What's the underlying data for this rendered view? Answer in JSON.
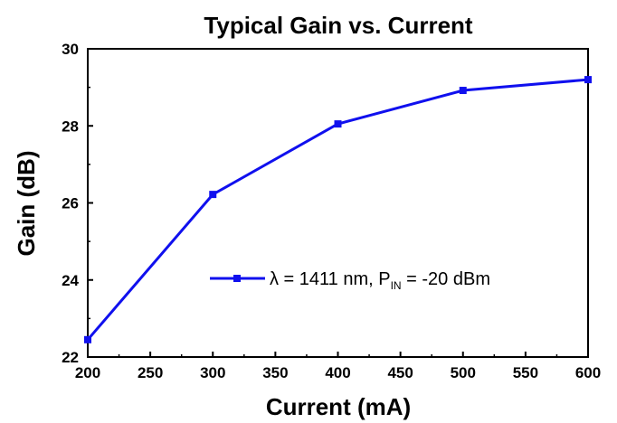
{
  "chart_data": {
    "type": "line",
    "title": "Typical Gain vs. Current",
    "xlabel": "Current (mA)",
    "ylabel": "Gain (dB)",
    "xlim": [
      200,
      600
    ],
    "ylim": [
      22,
      30
    ],
    "x_ticks": [
      200,
      250,
      300,
      350,
      400,
      450,
      500,
      550,
      600
    ],
    "y_ticks": [
      22,
      24,
      26,
      28,
      30
    ],
    "grid": false,
    "legend_position": "lower-right",
    "series": [
      {
        "name": "λ = 1411 nm, P_IN = -20 dBm",
        "legend_main": "λ = 1411 nm, P",
        "legend_sub": "IN",
        "legend_tail": " = -20 dBm",
        "color": "#1010ee",
        "marker": "square",
        "x": [
          200,
          300,
          400,
          500,
          600
        ],
        "y": [
          22.45,
          26.22,
          28.05,
          28.92,
          29.2
        ]
      }
    ]
  }
}
